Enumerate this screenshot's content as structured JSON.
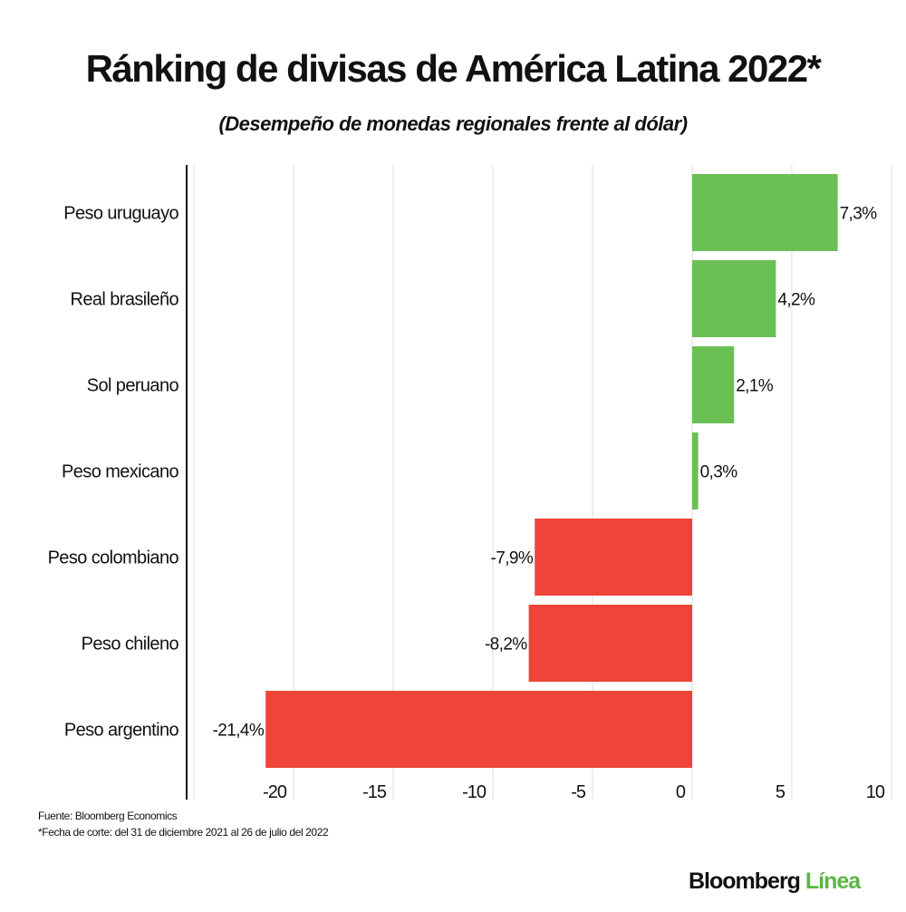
{
  "chart_data": {
    "type": "bar",
    "orientation": "horizontal",
    "title": "Ránking de divisas de América Latina 2022*",
    "subtitle": "(Desempeño de monedas regionales frente al dólar)",
    "categories": [
      "Peso uruguayo",
      "Real brasileño",
      "Sol peruano",
      "Peso mexicano",
      "Peso colombiano",
      "Peso chileno",
      "Peso argentino"
    ],
    "values": [
      7.3,
      4.2,
      2.1,
      0.3,
      -7.9,
      -8.2,
      -21.4
    ],
    "data_labels": [
      "7,3%",
      "4,2%",
      "2,1%",
      "0,3%",
      "-7,9%",
      "-8,2%",
      "-21,4%"
    ],
    "xlim": [
      -25,
      10
    ],
    "xticks": [
      -20,
      -15,
      -10,
      -5,
      0,
      5,
      10
    ],
    "xtick_labels": [
      "-20",
      "-15",
      "-10",
      "-5",
      "0",
      "5",
      "10"
    ],
    "grid": "vertical",
    "colors": {
      "positive": "#6abf55",
      "negative": "#ee4538"
    }
  },
  "footer": {
    "source": "Fuente: Bloomberg Economics",
    "note": "*Fecha de corte: del 31 de diciembre 2021 al 26 de julio del 2022"
  },
  "logo": {
    "part1": "Bloomberg",
    "part2": "Línea"
  }
}
